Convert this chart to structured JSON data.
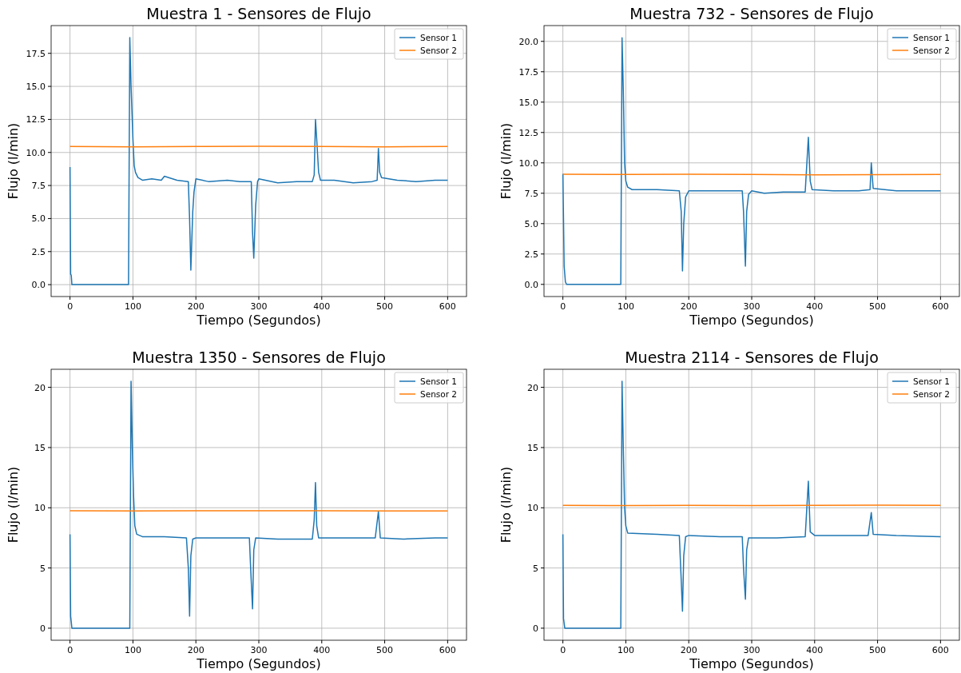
{
  "chart_data": [
    {
      "type": "line",
      "title": "Muestra 1 - Sensores de Flujo",
      "xlabel": "Tiempo (Segundos)",
      "ylabel": "Flujo (l/min)",
      "xlim": [
        -30,
        630
      ],
      "xticks": [
        0,
        100,
        200,
        300,
        400,
        500,
        600
      ],
      "ylim": [
        -0.9,
        19.6
      ],
      "yticks": [
        {
          "value": 0,
          "label": "0.0"
        },
        {
          "value": 2.5,
          "label": "2.5"
        },
        {
          "value": 5,
          "label": "5.0"
        },
        {
          "value": 7.5,
          "label": "7.5"
        },
        {
          "value": 10,
          "label": "10.0"
        },
        {
          "value": 12.5,
          "label": "12.5"
        },
        {
          "value": 15,
          "label": "15.0"
        },
        {
          "value": 17.5,
          "label": "17.5"
        }
      ],
      "grid": true,
      "legend": "top right",
      "series": [
        {
          "name": "Sensor 1",
          "color": "#1f77b4",
          "x": [
            0,
            1,
            2,
            3,
            93,
            95,
            97,
            100,
            102,
            104,
            108,
            115,
            130,
            145,
            150,
            170,
            188,
            190,
            192,
            195,
            197,
            200,
            220,
            250,
            270,
            288,
            290,
            292,
            295,
            298,
            300,
            330,
            360,
            385,
            388,
            390,
            392,
            395,
            398,
            420,
            450,
            480,
            488,
            490,
            492,
            495,
            520,
            550,
            580,
            600
          ],
          "values": [
            8.9,
            0.8,
            0.7,
            0,
            0,
            18.7,
            15,
            11,
            9,
            8.5,
            8.1,
            7.9,
            8.0,
            7.9,
            8.2,
            7.9,
            7.8,
            5,
            1.1,
            5.5,
            7.0,
            8.0,
            7.8,
            7.9,
            7.8,
            7.8,
            4,
            2.0,
            6,
            7.8,
            8.0,
            7.7,
            7.8,
            7.8,
            8.3,
            12.5,
            11,
            8.5,
            7.9,
            7.9,
            7.7,
            7.8,
            7.9,
            10.3,
            8.5,
            8.1,
            7.9,
            7.8,
            7.9,
            7.9
          ]
        },
        {
          "name": "Sensor 2",
          "color": "#ff7f0e",
          "x": [
            0,
            100,
            200,
            300,
            400,
            500,
            600
          ],
          "values": [
            10.45,
            10.43,
            10.45,
            10.47,
            10.45,
            10.43,
            10.45
          ]
        }
      ]
    },
    {
      "type": "line",
      "title": "Muestra 732 - Sensores de Flujo",
      "xlabel": "Tiempo (Segundos)",
      "ylabel": "Flujo (l/min)",
      "xlim": [
        -30,
        630
      ],
      "xticks": [
        0,
        100,
        200,
        300,
        400,
        500,
        600
      ],
      "ylim": [
        -1.0,
        21.3
      ],
      "yticks": [
        {
          "value": 0,
          "label": "0.0"
        },
        {
          "value": 2.5,
          "label": "2.5"
        },
        {
          "value": 5,
          "label": "5.0"
        },
        {
          "value": 7.5,
          "label": "7.5"
        },
        {
          "value": 10,
          "label": "10.0"
        },
        {
          "value": 12.5,
          "label": "12.5"
        },
        {
          "value": 15,
          "label": "15.0"
        },
        {
          "value": 17.5,
          "label": "17.5"
        },
        {
          "value": 20,
          "label": "20.0"
        }
      ],
      "grid": true,
      "legend": "top right",
      "series": [
        {
          "name": "Sensor 1",
          "color": "#1f77b4",
          "x": [
            0,
            2,
            4,
            6,
            92,
            94,
            96,
            98,
            100,
            103,
            110,
            150,
            185,
            188,
            190,
            192,
            195,
            200,
            220,
            260,
            285,
            287,
            290,
            292,
            295,
            300,
            320,
            350,
            385,
            390,
            393,
            396,
            430,
            470,
            488,
            490,
            493,
            530,
            570,
            600
          ],
          "values": [
            9.1,
            1.5,
            0.2,
            0,
            0,
            20.3,
            16,
            10,
            8.5,
            8.0,
            7.8,
            7.8,
            7.7,
            6,
            1.1,
            5,
            7.2,
            7.7,
            7.7,
            7.7,
            7.7,
            6,
            1.5,
            6,
            7.4,
            7.7,
            7.5,
            7.6,
            7.6,
            12.1,
            8.5,
            7.8,
            7.7,
            7.7,
            7.8,
            10.0,
            7.9,
            7.7,
            7.7,
            7.7
          ]
        },
        {
          "name": "Sensor 2",
          "color": "#ff7f0e",
          "x": [
            0,
            100,
            200,
            300,
            400,
            500,
            600
          ],
          "values": [
            9.07,
            9.05,
            9.07,
            9.04,
            9.02,
            9.03,
            9.05
          ]
        }
      ]
    },
    {
      "type": "line",
      "title": "Muestra 1350 - Sensores de Flujo",
      "xlabel": "Tiempo (Segundos)",
      "ylabel": "Flujo (l/min)",
      "xlim": [
        -30,
        630
      ],
      "xticks": [
        0,
        100,
        200,
        300,
        400,
        500,
        600
      ],
      "ylim": [
        -1.0,
        21.5
      ],
      "yticks": [
        0,
        5,
        10,
        15,
        20
      ],
      "grid": true,
      "legend": "top right",
      "series": [
        {
          "name": "Sensor 1",
          "color": "#1f77b4",
          "x": [
            0,
            1,
            3,
            95,
            97,
            99,
            101,
            103,
            106,
            115,
            150,
            185,
            188,
            190,
            192,
            195,
            200,
            250,
            285,
            287,
            290,
            292,
            295,
            330,
            385,
            388,
            390,
            392,
            395,
            430,
            485,
            490,
            493,
            530,
            580,
            600
          ],
          "values": [
            7.8,
            1,
            0,
            0,
            20.5,
            15,
            11,
            8.5,
            7.8,
            7.6,
            7.6,
            7.5,
            5,
            1.0,
            6,
            7.4,
            7.5,
            7.5,
            7.5,
            5,
            1.6,
            6.5,
            7.5,
            7.4,
            7.4,
            9,
            12.1,
            8.5,
            7.5,
            7.5,
            7.5,
            9.7,
            7.5,
            7.4,
            7.5,
            7.5
          ]
        },
        {
          "name": "Sensor 2",
          "color": "#ff7f0e",
          "x": [
            0,
            100,
            200,
            300,
            400,
            500,
            600
          ],
          "values": [
            9.75,
            9.73,
            9.75,
            9.76,
            9.75,
            9.74,
            9.73
          ]
        }
      ]
    },
    {
      "type": "line",
      "title": "Muestra 2114 - Sensores de Flujo",
      "xlabel": "Tiempo (Segundos)",
      "ylabel": "Flujo (l/min)",
      "xlim": [
        -30,
        630
      ],
      "xticks": [
        0,
        100,
        200,
        300,
        400,
        500,
        600
      ],
      "ylim": [
        -1.0,
        21.5
      ],
      "yticks": [
        0,
        5,
        10,
        15,
        20
      ],
      "grid": true,
      "legend": "top right",
      "series": [
        {
          "name": "Sensor 1",
          "color": "#1f77b4",
          "x": [
            0,
            1,
            3,
            92,
            94,
            96,
            98,
            100,
            103,
            150,
            185,
            188,
            190,
            192,
            195,
            200,
            250,
            285,
            287,
            290,
            292,
            295,
            340,
            385,
            390,
            393,
            400,
            450,
            485,
            490,
            493,
            530,
            600
          ],
          "values": [
            7.8,
            0.8,
            0,
            0,
            20.5,
            15,
            10,
            8.5,
            7.9,
            7.8,
            7.7,
            4,
            1.4,
            6,
            7.6,
            7.7,
            7.6,
            7.6,
            5,
            2.4,
            6.5,
            7.5,
            7.5,
            7.6,
            12.2,
            8.0,
            7.7,
            7.7,
            7.7,
            9.6,
            7.8,
            7.7,
            7.6
          ]
        },
        {
          "name": "Sensor 2",
          "color": "#ff7f0e",
          "x": [
            0,
            100,
            200,
            300,
            400,
            500,
            600
          ],
          "values": [
            10.2,
            10.18,
            10.2,
            10.19,
            10.2,
            10.21,
            10.2
          ]
        }
      ]
    }
  ]
}
